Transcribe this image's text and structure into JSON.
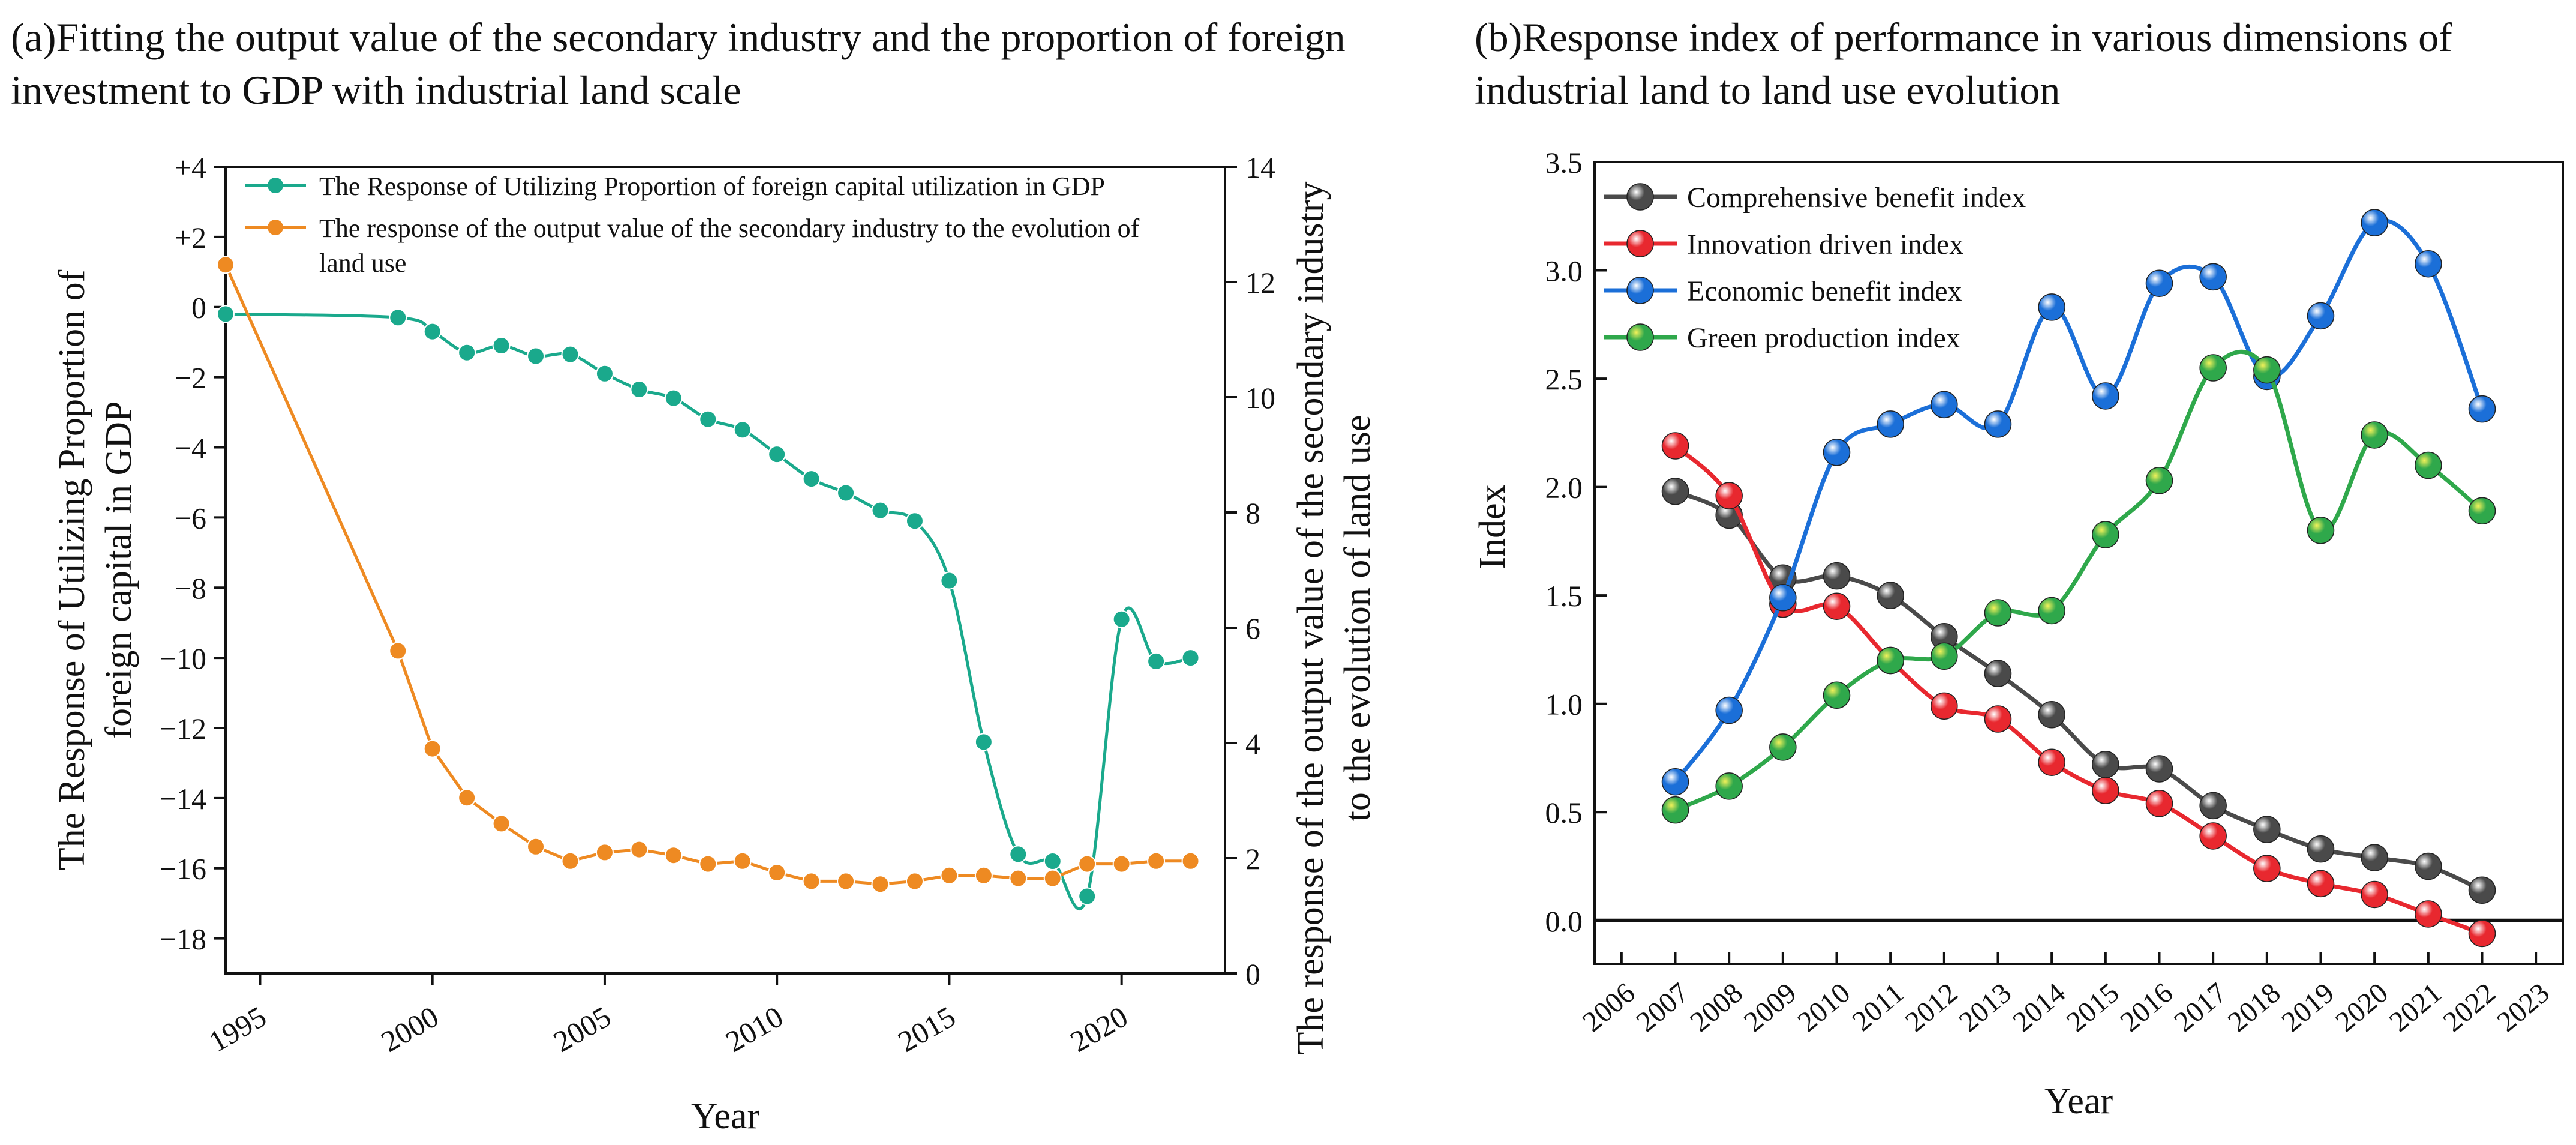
{
  "panel_a": {
    "title": "(a)Fitting the output value of the secondary industry and the proportion of foreign investment to GDP with industrial land scale"
  },
  "panel_b": {
    "title": "(b)Response index of performance in various dimensions of industrial land to land use evolution"
  },
  "chart_data": [
    {
      "type": "line",
      "panel": "a",
      "xlabel": "Year",
      "ylabel_left": "The Response of Utilizing Proportion of foreign capital in GDP",
      "ylabel_right": "The response of the output value of the secondary industry to the evolution of land use",
      "xlim": [
        1994,
        2023
      ],
      "x_ticks": [
        1995,
        2000,
        2005,
        2010,
        2015,
        2020
      ],
      "x_tick_labels": [
        "1995",
        "2000",
        "2005",
        "2010",
        "2015",
        "2020"
      ],
      "ylim_left": [
        -19,
        4
      ],
      "y_ticks_left": [
        4,
        2,
        0,
        -2,
        -4,
        -6,
        -8,
        -10,
        -12,
        -14,
        -16,
        -18
      ],
      "y_tick_labels_left": [
        "+4",
        "+2",
        "0",
        "−2",
        "−4",
        "−6",
        "−8",
        "−10",
        "−12",
        "−14",
        "−16",
        "−18"
      ],
      "ylim_right": [
        0,
        14
      ],
      "y_ticks_right": [
        0,
        2,
        4,
        6,
        8,
        10,
        12,
        14
      ],
      "y_tick_labels_right": [
        "0",
        "2",
        "4",
        "6",
        "8",
        "10",
        "12",
        "14"
      ],
      "legend_position": "top",
      "series": [
        {
          "name": "The Response of Utilizing Proportion of foreign capital utilization in GDP",
          "axis": "left",
          "color": "#1aa98c",
          "x": [
            1994,
            1999,
            2000,
            2001,
            2002,
            2003,
            2004,
            2005,
            2006,
            2007,
            2008,
            2009,
            2010,
            2011,
            2012,
            2013,
            2014,
            2015,
            2016,
            2017,
            2018,
            2019,
            2020,
            2021,
            2022
          ],
          "y": [
            -0.2,
            -0.3,
            -0.7,
            -1.3,
            -1.1,
            -1.4,
            -1.35,
            -1.9,
            -2.35,
            -2.6,
            -3.2,
            -3.5,
            -4.2,
            -4.9,
            -5.3,
            -5.8,
            -6.1,
            -7.8,
            -12.4,
            -15.6,
            -15.8,
            -16.8,
            -8.9,
            -10.1,
            -10.0
          ]
        },
        {
          "name": "The response of the output value of the secondary industry to the evolution of land use",
          "axis": "right",
          "color": "#ee8a22",
          "x": [
            1994,
            1999,
            2000,
            2001,
            2002,
            2003,
            2004,
            2005,
            2006,
            2007,
            2008,
            2009,
            2010,
            2011,
            2012,
            2013,
            2014,
            2015,
            2016,
            2017,
            2018,
            2019,
            2020,
            2021,
            2022
          ],
          "y": [
            12.3,
            5.6,
            3.9,
            3.05,
            2.6,
            2.2,
            1.95,
            2.1,
            2.15,
            2.05,
            1.9,
            1.95,
            1.75,
            1.6,
            1.6,
            1.55,
            1.6,
            1.7,
            1.7,
            1.65,
            1.65,
            1.9,
            1.9,
            1.95,
            1.95
          ]
        }
      ]
    },
    {
      "type": "line",
      "panel": "b",
      "xlabel": "Year",
      "ylabel": "Index",
      "xlim": [
        2005.5,
        2023.5
      ],
      "x_ticks": [
        2006,
        2007,
        2008,
        2009,
        2010,
        2011,
        2012,
        2013,
        2014,
        2015,
        2016,
        2017,
        2018,
        2019,
        2020,
        2021,
        2022,
        2023
      ],
      "x_tick_labels": [
        "2006",
        "2007",
        "2008",
        "2009",
        "2010",
        "2011",
        "2012",
        "2013",
        "2014",
        "2015",
        "2016",
        "2017",
        "2018",
        "2019",
        "2020",
        "2021",
        "2022",
        "2023"
      ],
      "ylim": [
        -0.2,
        3.5
      ],
      "y_ticks": [
        0,
        0.5,
        1.0,
        1.5,
        2.0,
        2.5,
        3.0,
        3.5
      ],
      "y_tick_labels": [
        "0.0",
        "0.5",
        "1.0",
        "1.5",
        "2.0",
        "2.5",
        "3.0",
        "3.5"
      ],
      "zero_line": true,
      "legend_position": "top-left",
      "series": [
        {
          "name": "Comprehensive benefit index",
          "color": "#4a4a4a",
          "x": [
            2007,
            2008,
            2009,
            2010,
            2011,
            2012,
            2013,
            2014,
            2015,
            2016,
            2017,
            2018,
            2019,
            2020,
            2021,
            2022
          ],
          "y": [
            1.98,
            1.87,
            1.58,
            1.59,
            1.5,
            1.31,
            1.14,
            0.95,
            0.72,
            0.7,
            0.53,
            0.42,
            0.33,
            0.29,
            0.25,
            0.14
          ]
        },
        {
          "name": "Innovation driven index",
          "color": "#e8282f",
          "x": [
            2007,
            2008,
            2009,
            2010,
            2011,
            2012,
            2013,
            2014,
            2015,
            2016,
            2017,
            2018,
            2019,
            2020,
            2021,
            2022
          ],
          "y": [
            2.19,
            1.96,
            1.46,
            1.45,
            1.2,
            0.99,
            0.93,
            0.73,
            0.6,
            0.54,
            0.39,
            0.24,
            0.17,
            0.12,
            0.03,
            -0.06
          ]
        },
        {
          "name": "Economic benefit index",
          "color": "#1b6fd8",
          "x": [
            2007,
            2008,
            2009,
            2010,
            2011,
            2012,
            2013,
            2014,
            2015,
            2016,
            2017,
            2018,
            2019,
            2020,
            2021,
            2022
          ],
          "y": [
            0.64,
            0.97,
            1.49,
            2.16,
            2.29,
            2.38,
            2.29,
            2.83,
            2.42,
            2.94,
            2.97,
            2.51,
            2.79,
            3.22,
            3.03,
            2.36
          ]
        },
        {
          "name": "Green production index",
          "color": "#2fa84b",
          "x": [
            2007,
            2008,
            2009,
            2010,
            2011,
            2012,
            2013,
            2014,
            2015,
            2016,
            2017,
            2018,
            2019,
            2020,
            2021,
            2022
          ],
          "y": [
            0.51,
            0.62,
            0.8,
            1.04,
            1.2,
            1.22,
            1.42,
            1.43,
            1.78,
            2.03,
            2.55,
            2.54,
            1.8,
            2.24,
            2.1,
            1.89
          ]
        }
      ]
    }
  ]
}
